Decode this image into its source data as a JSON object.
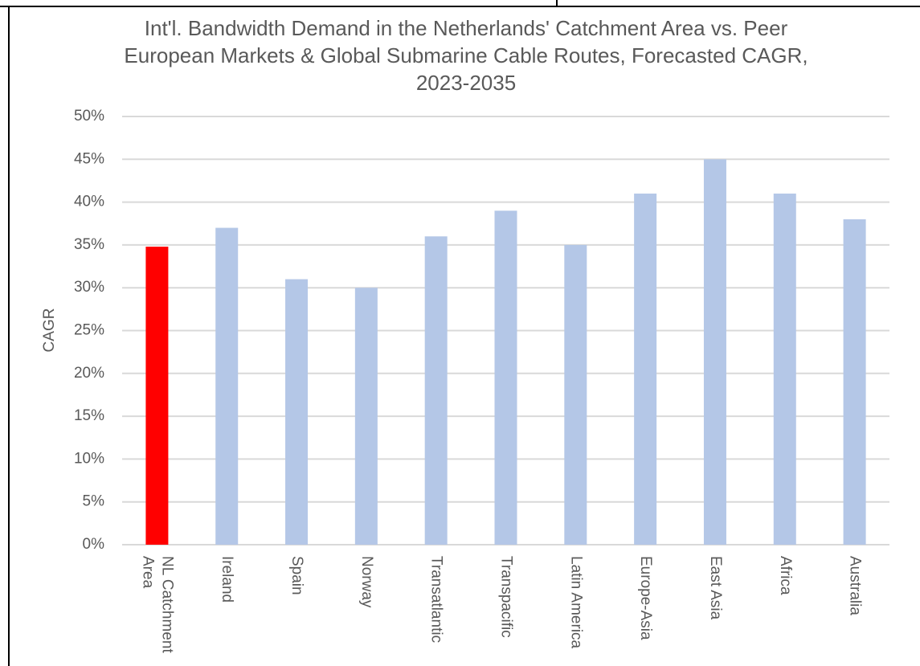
{
  "chart_data": {
    "type": "bar",
    "title": "Int'l. Bandwidth Demand in the Netherlands' Catchment Area vs. Peer European Markets & Global Submarine Cable Routes, Forecasted CAGR, 2023-2035",
    "y_label": "CAGR",
    "categories": [
      "NL Catchment Area",
      "Ireland",
      "Spain",
      "Norway",
      "Transatlantic",
      "Transpacific",
      "Latin America",
      "Europe-Asia",
      "East Asia",
      "Africa",
      "Australia"
    ],
    "values": [
      34.8,
      37,
      31,
      30,
      36,
      39,
      35,
      41,
      45,
      41,
      38
    ],
    "colors": [
      "#ff0000",
      "#b4c7e7",
      "#b4c7e7",
      "#b4c7e7",
      "#b4c7e7",
      "#b4c7e7",
      "#b4c7e7",
      "#b4c7e7",
      "#b4c7e7",
      "#b4c7e7",
      "#b4c7e7"
    ],
    "ylim": [
      0,
      50
    ],
    "yticks": [
      {
        "value": 0,
        "label": "0%"
      },
      {
        "value": 5,
        "label": "5%"
      },
      {
        "value": 10,
        "label": "10%"
      },
      {
        "value": 15,
        "label": "15%"
      },
      {
        "value": 20,
        "label": "20%"
      },
      {
        "value": 25,
        "label": "25%"
      },
      {
        "value": 30,
        "label": "30%"
      },
      {
        "value": 35,
        "label": "35%"
      },
      {
        "value": 40,
        "label": "40%"
      },
      {
        "value": 45,
        "label": "45%"
      },
      {
        "value": 50,
        "label": "50%"
      }
    ],
    "grid": true
  }
}
